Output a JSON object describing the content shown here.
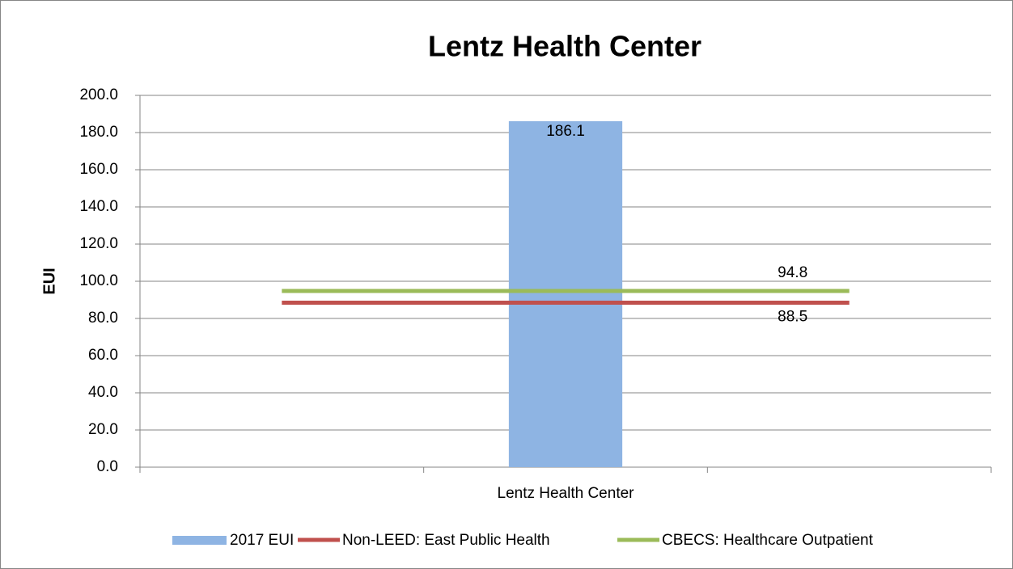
{
  "chart_data": {
    "type": "bar-line",
    "title": "Lentz Health Center",
    "y_label": "EUI",
    "categories": [
      null,
      "Lentz Health Center",
      null
    ],
    "series": [
      {
        "name": "2017 EUI",
        "type": "bar",
        "color": "#8eb4e3",
        "values": [
          null,
          186.1,
          null
        ]
      },
      {
        "name": "Non-LEED: East Public Health",
        "type": "line",
        "color": "#c0504d",
        "values": [
          88.5,
          88.5,
          88.5
        ]
      },
      {
        "name": "CBECS: Healthcare Outpatient",
        "type": "line",
        "color": "#9bbb59",
        "values": [
          94.8,
          94.8,
          94.8
        ]
      }
    ],
    "ylim": [
      0,
      200
    ],
    "yticks": [
      {
        "value": 0,
        "label": "0.0"
      },
      {
        "value": 20,
        "label": "20.0"
      },
      {
        "value": 40,
        "label": "40.0"
      },
      {
        "value": 60,
        "label": "60.0"
      },
      {
        "value": 80,
        "label": "80.0"
      },
      {
        "value": 100,
        "label": "100.0"
      },
      {
        "value": 120,
        "label": "120.0"
      },
      {
        "value": 140,
        "label": "140.0"
      },
      {
        "value": 160,
        "label": "160.0"
      },
      {
        "value": 180,
        "label": "180.0"
      },
      {
        "value": 200,
        "label": "200.0"
      }
    ],
    "grid": true,
    "legend": "bottom"
  }
}
